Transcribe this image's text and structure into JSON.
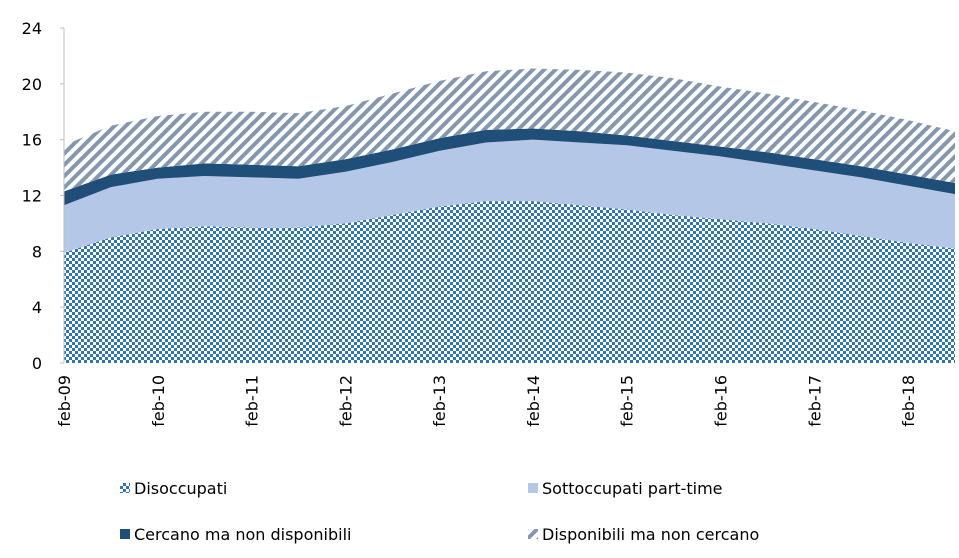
{
  "chart_data": {
    "type": "stacked-area",
    "categories": [
      "feb-09",
      null,
      "feb-10",
      null,
      "feb-11",
      null,
      "feb-12",
      null,
      "feb-13",
      null,
      "feb-14",
      null,
      "feb-15",
      null,
      "feb-16",
      null,
      "feb-17",
      null,
      "feb-18",
      null
    ],
    "series": [
      {
        "name": "Disoccupati",
        "color": "#2e75b6",
        "pattern": "checker",
        "values": [
          7.9,
          9.0,
          9.6,
          9.8,
          9.7,
          9.7,
          10.0,
          10.6,
          11.2,
          11.6,
          11.6,
          11.3,
          11.0,
          10.6,
          10.3,
          10.0,
          9.6,
          9.1,
          8.6,
          8.2
        ]
      },
      {
        "name": "Sottoccupati part-time",
        "color": "#b4c7e7",
        "pattern": "solid",
        "values": [
          3.4,
          3.6,
          3.6,
          3.6,
          3.6,
          3.5,
          3.7,
          3.8,
          4.0,
          4.2,
          4.4,
          4.5,
          4.6,
          4.6,
          4.5,
          4.3,
          4.2,
          4.2,
          4.1,
          3.9
        ]
      },
      {
        "name": "Cercano ma non disponibili",
        "color": "#1f4e79",
        "pattern": "solid",
        "values": [
          1.0,
          0.9,
          0.8,
          0.9,
          0.9,
          0.9,
          0.9,
          0.9,
          0.9,
          0.9,
          0.8,
          0.8,
          0.7,
          0.7,
          0.7,
          0.8,
          0.8,
          0.8,
          0.8,
          0.8
        ]
      },
      {
        "name": "Disponibili ma non cercano",
        "color": "#8497b0",
        "pattern": "hatch",
        "values": [
          3.3,
          3.5,
          3.7,
          3.7,
          3.8,
          3.8,
          3.8,
          4.0,
          4.1,
          4.2,
          4.3,
          4.4,
          4.5,
          4.5,
          4.3,
          4.2,
          4.1,
          4.0,
          3.9,
          3.7
        ]
      }
    ],
    "ylim": [
      0,
      24
    ],
    "yticks": [
      0,
      4,
      8,
      12,
      16,
      20,
      24
    ],
    "grid": false
  }
}
